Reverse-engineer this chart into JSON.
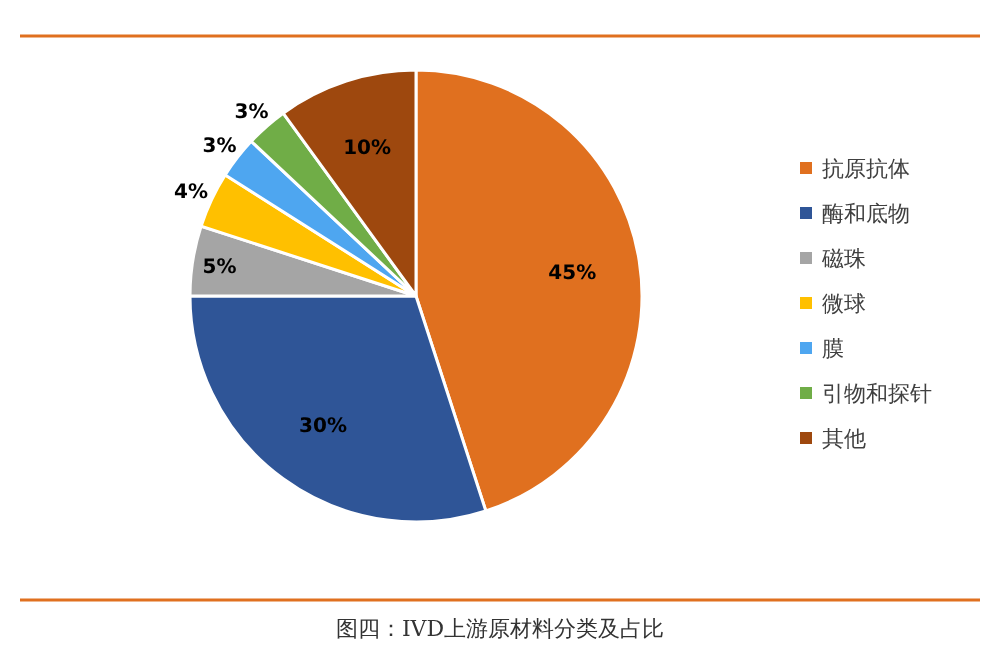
{
  "chart_data": {
    "type": "pie",
    "categories": [
      "抗原抗体",
      "酶和底物",
      "磁珠",
      "微球",
      "膜",
      "引物和探针",
      "其他"
    ],
    "values": [
      45,
      30,
      5,
      4,
      3,
      3,
      10
    ],
    "colors": [
      "#e0701f",
      "#2f5597",
      "#a5a5a5",
      "#ffc000",
      "#4ea6f0",
      "#70ad47",
      "#9e480e"
    ],
    "value_labels": [
      "45%",
      "30%",
      "5%",
      "4%",
      "3%",
      "3%",
      "10%"
    ],
    "legend": "right",
    "annotations": [
      "图四：IVD上游原材料分类及占比"
    ]
  }
}
